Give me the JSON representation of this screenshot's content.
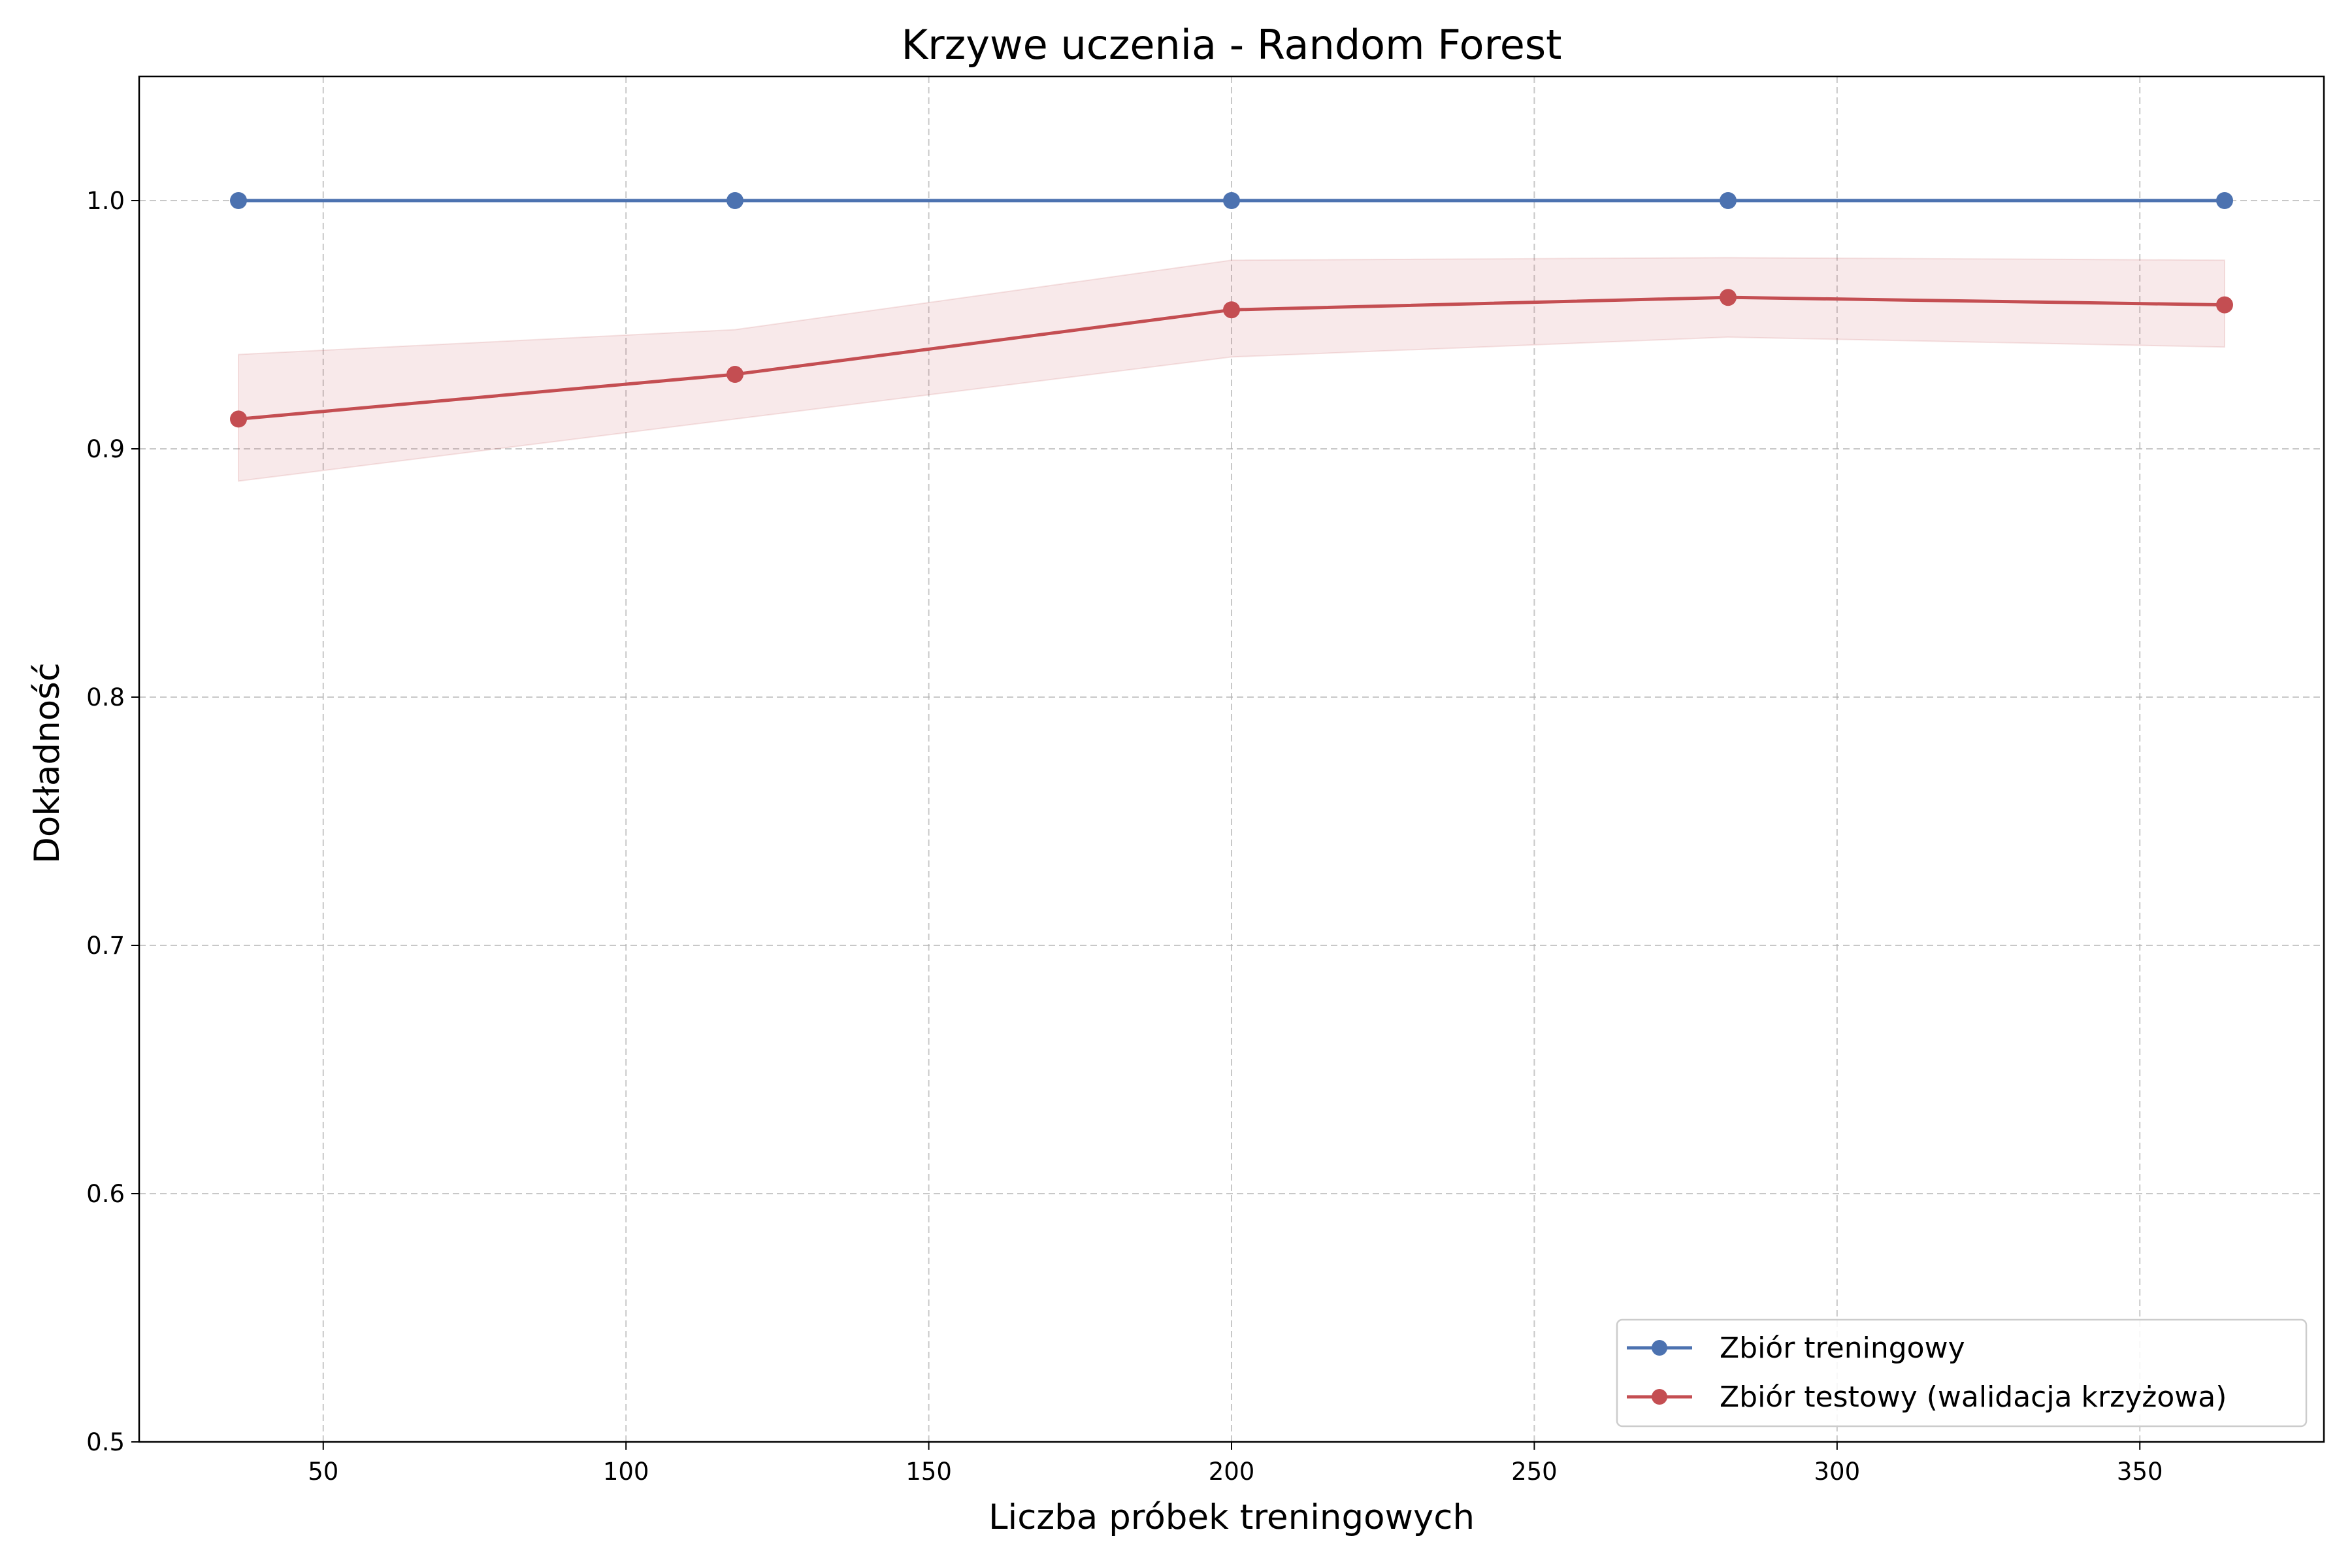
{
  "chart_data": {
    "type": "line",
    "title": "Krzywe uczenia - Random Forest",
    "xlabel": "Liczba próbek treningowych",
    "ylabel": "Dokładność",
    "xlim": [
      19.6,
      380.4
    ],
    "ylim": [
      0.5,
      1.05
    ],
    "xticks": [
      50,
      100,
      150,
      200,
      250,
      300,
      350
    ],
    "xtick_labels": [
      "50",
      "100",
      "150",
      "200",
      "250",
      "300",
      "350"
    ],
    "yticks": [
      0.5,
      0.6,
      0.7,
      0.8,
      0.9,
      1.0
    ],
    "ytick_labels": [
      "0.5",
      "0.6",
      "0.7",
      "0.8",
      "0.9",
      "1.0"
    ],
    "grid": true,
    "legend_position": "lower-right",
    "x": [
      36,
      118,
      200,
      282,
      364
    ],
    "series": [
      {
        "name": "Zbiór treningowy",
        "values": [
          1.0,
          1.0,
          1.0,
          1.0,
          1.0
        ],
        "color": "#4c72b0",
        "marker": "circle"
      },
      {
        "name": "Zbiór testowy (walidacja krzyżowa)",
        "values": [
          0.912,
          0.93,
          0.956,
          0.961,
          0.958
        ],
        "band_lower": [
          0.887,
          0.912,
          0.937,
          0.945,
          0.941
        ],
        "band_upper": [
          0.938,
          0.948,
          0.976,
          0.977,
          0.976
        ],
        "color": "#c44e52",
        "marker": "circle"
      }
    ]
  }
}
